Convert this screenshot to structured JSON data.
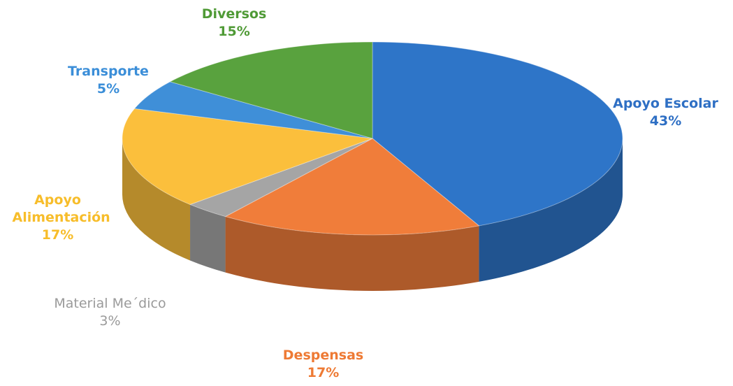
{
  "chart_data": {
    "type": "pie",
    "title": "",
    "slices": [
      {
        "label": "Apoyo Escolar",
        "value": 43,
        "display": "43%",
        "color": "#2e75c8"
      },
      {
        "label": "Despensas",
        "value": 17,
        "display": "17%",
        "color": "#f07d3a"
      },
      {
        "label": "Material Me´dico",
        "value": 3,
        "display": "3%",
        "color": "#a5a5a5"
      },
      {
        "label": "Apoyo Alimentación",
        "value": 17,
        "display": "17%",
        "color": "#fbbf3c"
      },
      {
        "label": "Transporte",
        "value": 5,
        "display": "5%",
        "color": "#3f8fd8"
      },
      {
        "label": "Diversos",
        "value": 15,
        "display": "15%",
        "color": "#59a23e"
      }
    ],
    "label_colors": {
      "Apoyo Escolar": "#2e6fc4",
      "Despensas": "#ee7a34",
      "Material Me´dico": "#9a9a9a",
      "Apoyo Alimentación": "#f7bd2a",
      "Transporte": "#3b8ed8",
      "Diversos": "#4f9a36"
    },
    "legend": "none",
    "style": "3d-pie"
  }
}
